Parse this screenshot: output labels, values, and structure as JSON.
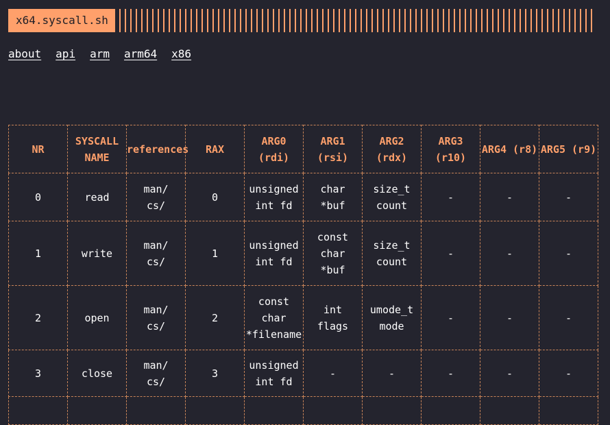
{
  "header": {
    "title": "x64.syscall.sh"
  },
  "nav": [
    "about",
    "api",
    "arm",
    "arm64",
    "x86"
  ],
  "colors": {
    "accent": "#ffa06b",
    "background": "#24242e",
    "text": "#ffffff"
  },
  "table": {
    "headers": [
      "NR",
      "SYSCALL\nNAME",
      "references",
      "RAX",
      "ARG0\n(rdi)",
      "ARG1\n(rsi)",
      "ARG2\n(rdx)",
      "ARG3\n(r10)",
      "ARG4\n(r8)",
      "ARG5\n(r9)"
    ],
    "rows": [
      [
        "0",
        "read",
        "man/\ncs/",
        "0",
        "unsigned\nint fd",
        "char\n*buf",
        "size_t\ncount",
        "-",
        "-",
        "-"
      ],
      [
        "1",
        "write",
        "man/\ncs/",
        "1",
        "unsigned\nint fd",
        "const\nchar\n*buf",
        "size_t\ncount",
        "-",
        "-",
        "-"
      ],
      [
        "2",
        "open",
        "man/\ncs/",
        "2",
        "const\nchar\n*filename",
        "int\nflags",
        "umode_t\nmode",
        "-",
        "-",
        "-"
      ],
      [
        "3",
        "close",
        "man/\ncs/",
        "3",
        "unsigned\nint fd",
        "-",
        "-",
        "-",
        "-",
        "-"
      ],
      [
        "",
        "",
        "",
        "",
        "",
        "",
        "",
        "",
        "",
        ""
      ]
    ]
  }
}
